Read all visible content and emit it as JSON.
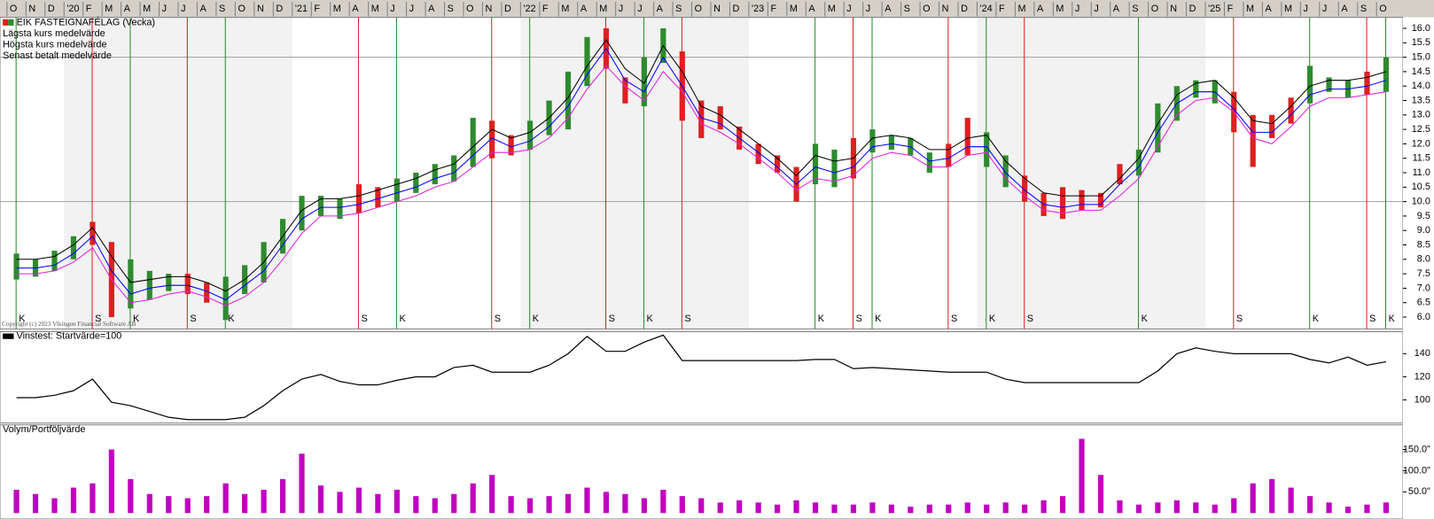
{
  "chart_data": [
    {
      "type": "price",
      "title": "EIK FASTEIGNAFÉLAG (Vecka)",
      "copyright": "Copyright (c) 2023 Vikingen Financial Software AB",
      "categories": [
        "O",
        "N",
        "D",
        "'20",
        "F",
        "M",
        "A",
        "M",
        "J",
        "J",
        "A",
        "S",
        "O",
        "N",
        "D",
        "'21",
        "F",
        "M",
        "A",
        "M",
        "J",
        "J",
        "A",
        "S",
        "O",
        "N",
        "D",
        "'22",
        "F",
        "M",
        "A",
        "M",
        "J",
        "J",
        "A",
        "S",
        "O",
        "N",
        "D",
        "'23",
        "F",
        "M",
        "A",
        "M",
        "J",
        "J",
        "A",
        "S",
        "O",
        "N",
        "D",
        "'24",
        "F",
        "M",
        "A",
        "M",
        "J",
        "J",
        "A",
        "S",
        "O",
        "N",
        "D",
        "'25",
        "F",
        "M",
        "A",
        "M",
        "J",
        "J",
        "A",
        "S",
        "O"
      ],
      "low": [
        7.3,
        7.4,
        7.6,
        8.0,
        8.5,
        6.0,
        6.3,
        6.6,
        6.9,
        6.8,
        6.5,
        5.9,
        6.8,
        7.2,
        8.2,
        9.0,
        9.5,
        9.4,
        9.6,
        9.8,
        10.0,
        10.3,
        10.6,
        10.7,
        11.2,
        11.5,
        11.6,
        11.8,
        12.3,
        12.5,
        14.0,
        14.6,
        13.4,
        13.3,
        14.8,
        12.8,
        12.2,
        12.5,
        11.8,
        11.3,
        11.0,
        10.0,
        10.6,
        10.5,
        10.8,
        11.7,
        11.8,
        11.6,
        11.0,
        11.2,
        11.6,
        11.2,
        10.5,
        10.0,
        9.5,
        9.4,
        9.7,
        9.8,
        10.6,
        10.9,
        11.7,
        12.8,
        13.6,
        13.4,
        12.4,
        11.2,
        12.2,
        12.7,
        13.4,
        13.8,
        13.6,
        13.7,
        13.8
      ],
      "high": [
        8.2,
        8.0,
        8.3,
        8.8,
        9.3,
        8.6,
        8.0,
        7.6,
        7.5,
        7.5,
        7.2,
        7.4,
        7.8,
        8.6,
        9.4,
        10.2,
        10.2,
        10.1,
        10.6,
        10.5,
        10.8,
        11.0,
        11.3,
        11.6,
        12.9,
        12.8,
        12.3,
        12.8,
        13.5,
        14.5,
        15.7,
        16.0,
        14.3,
        15.0,
        16.0,
        15.2,
        13.5,
        13.3,
        12.6,
        12.0,
        11.6,
        11.2,
        12.0,
        11.8,
        12.2,
        12.5,
        12.3,
        12.2,
        11.7,
        12.0,
        12.9,
        12.4,
        11.6,
        10.9,
        10.3,
        10.5,
        10.4,
        10.3,
        11.3,
        11.8,
        13.4,
        14.0,
        14.2,
        14.2,
        13.8,
        13.0,
        13.0,
        13.6,
        14.7,
        14.3,
        14.2,
        14.5,
        15.0
      ],
      "signals": [
        "K",
        null,
        null,
        null,
        "S",
        null,
        "K",
        null,
        null,
        "S",
        null,
        "K",
        null,
        null,
        null,
        null,
        null,
        null,
        "S",
        null,
        "K",
        null,
        null,
        null,
        null,
        "S",
        null,
        "K",
        null,
        null,
        null,
        "S",
        null,
        "K",
        null,
        "S",
        null,
        null,
        null,
        null,
        null,
        null,
        "K",
        null,
        "S",
        "K",
        null,
        null,
        null,
        "S",
        null,
        "K",
        null,
        "S",
        null,
        null,
        null,
        null,
        null,
        "K",
        null,
        null,
        null,
        null,
        "S",
        null,
        null,
        null,
        "K",
        null,
        null,
        "S",
        "K"
      ],
      "signal_colors": {
        "K": "#2e8b2e",
        "S": "#dd2020"
      },
      "series": [
        {
          "name": "Lägsta kurs medelvärde",
          "color": "#e020e0",
          "values": [
            7.5,
            7.5,
            7.6,
            7.9,
            8.4,
            7.3,
            6.5,
            6.6,
            6.8,
            6.9,
            6.7,
            6.4,
            6.7,
            7.2,
            8.0,
            8.9,
            9.5,
            9.5,
            9.6,
            9.8,
            10.0,
            10.2,
            10.5,
            10.7,
            11.2,
            11.7,
            11.7,
            11.8,
            12.2,
            12.9,
            13.9,
            14.7,
            14.0,
            13.5,
            14.5,
            13.8,
            12.7,
            12.4,
            12.0,
            11.5,
            11.0,
            10.4,
            10.8,
            10.7,
            10.9,
            11.5,
            11.7,
            11.6,
            11.2,
            11.2,
            11.6,
            11.7,
            10.8,
            10.2,
            9.7,
            9.6,
            9.7,
            9.7,
            10.2,
            10.8,
            11.9,
            13.0,
            13.5,
            13.6,
            13.1,
            12.2,
            12.0,
            12.6,
            13.3,
            13.6,
            13.6,
            13.7,
            13.8
          ]
        },
        {
          "name": "Högsta kurs medelvärde",
          "color": "#000000",
          "values": [
            8.0,
            8.0,
            8.1,
            8.5,
            9.1,
            8.1,
            7.2,
            7.3,
            7.4,
            7.4,
            7.2,
            6.9,
            7.3,
            7.9,
            8.8,
            9.7,
            10.1,
            10.1,
            10.2,
            10.4,
            10.6,
            10.8,
            11.1,
            11.3,
            11.9,
            12.5,
            12.2,
            12.4,
            12.9,
            13.6,
            14.7,
            15.6,
            14.6,
            14.1,
            15.4,
            14.5,
            13.3,
            13.0,
            12.5,
            12.0,
            11.5,
            10.9,
            11.6,
            11.4,
            11.5,
            12.2,
            12.3,
            12.2,
            11.8,
            11.8,
            12.2,
            12.3,
            11.4,
            10.8,
            10.3,
            10.2,
            10.2,
            10.2,
            10.8,
            11.5,
            12.7,
            13.7,
            14.1,
            14.2,
            13.6,
            12.8,
            12.7,
            13.3,
            14.0,
            14.2,
            14.2,
            14.3,
            14.5
          ]
        },
        {
          "name": "Senast betalt medelvärde",
          "color": "#0000ff",
          "values": [
            7.7,
            7.7,
            7.8,
            8.2,
            8.8,
            7.6,
            6.8,
            7.0,
            7.1,
            7.1,
            6.9,
            6.6,
            7.1,
            7.6,
            8.5,
            9.4,
            9.8,
            9.8,
            9.9,
            10.1,
            10.3,
            10.5,
            10.8,
            11.0,
            11.6,
            12.2,
            11.9,
            12.1,
            12.6,
            13.3,
            14.4,
            15.3,
            14.2,
            13.8,
            15.0,
            14.0,
            12.9,
            12.7,
            12.2,
            11.7,
            11.2,
            10.6,
            11.2,
            11.0,
            11.2,
            11.9,
            12.0,
            11.9,
            11.4,
            11.5,
            11.9,
            11.9,
            11.0,
            10.4,
            9.9,
            9.8,
            9.9,
            9.9,
            10.6,
            11.2,
            12.4,
            13.4,
            13.8,
            13.8,
            13.2,
            12.4,
            12.4,
            13.0,
            13.7,
            13.9,
            13.9,
            14.0,
            14.2
          ]
        }
      ],
      "ylim": [
        5.59,
        16.38
      ],
      "yticks": [
        {
          "value": 6,
          "label": "6.0"
        },
        {
          "value": 6.5,
          "label": "6.5"
        },
        {
          "value": 7,
          "label": "7.0"
        },
        {
          "value": 7.5,
          "label": "7.5"
        },
        {
          "value": 8,
          "label": "8.0"
        },
        {
          "value": 8.5,
          "label": "8.5"
        },
        {
          "value": 9,
          "label": "9.0"
        },
        {
          "value": 9.5,
          "label": "9.5"
        },
        {
          "value": 10,
          "label": "10.0"
        },
        {
          "value": 10.5,
          "label": "10.5"
        },
        {
          "value": 11,
          "label": "11.0"
        },
        {
          "value": 11.5,
          "label": "11.5"
        },
        {
          "value": 12,
          "label": "12.0"
        },
        {
          "value": 12.5,
          "label": "12.5"
        },
        {
          "value": 13,
          "label": "13.0"
        },
        {
          "value": 13.5,
          "label": "13.5"
        },
        {
          "value": 14,
          "label": "14.0"
        },
        {
          "value": 14.5,
          "label": "14.5"
        },
        {
          "value": 15,
          "label": "15.0"
        },
        {
          "value": 15.5,
          "label": "15.5"
        },
        {
          "value": 16,
          "label": "16.0"
        }
      ],
      "reference_lines": [
        10,
        15
      ]
    },
    {
      "type": "line",
      "series": [
        {
          "name": "Vinstest: Startvärde=100",
          "color": "#000000",
          "values": [
            102,
            102,
            104,
            108,
            118,
            98,
            95,
            90,
            85,
            83,
            83,
            83,
            85,
            95,
            108,
            118,
            122,
            116,
            113,
            113,
            117,
            120,
            120,
            128,
            130,
            124,
            124,
            124,
            130,
            140,
            155,
            142,
            142,
            150,
            156,
            134,
            134,
            134,
            134,
            134,
            134,
            134,
            135,
            135,
            127,
            128,
            127,
            126,
            125,
            124,
            124,
            124,
            118,
            115,
            115,
            115,
            115,
            115,
            115,
            115,
            125,
            140,
            145,
            142,
            140,
            140,
            140,
            140,
            135,
            132,
            137,
            130,
            133
          ]
        }
      ],
      "ylim": [
        80,
        159
      ],
      "yticks": [
        100,
        120,
        140
      ]
    },
    {
      "type": "bar",
      "title": "Volym/Portföljvärde",
      "color": "#c000c0",
      "values": [
        55,
        45,
        35,
        60,
        70,
        150,
        80,
        45,
        40,
        35,
        40,
        70,
        45,
        55,
        80,
        140,
        65,
        50,
        60,
        45,
        55,
        40,
        35,
        45,
        70,
        90,
        40,
        35,
        40,
        45,
        60,
        50,
        45,
        35,
        55,
        40,
        35,
        25,
        30,
        25,
        20,
        30,
        25,
        20,
        20,
        25,
        20,
        15,
        20,
        20,
        25,
        20,
        25,
        20,
        30,
        40,
        175,
        90,
        30,
        20,
        25,
        30,
        25,
        20,
        35,
        70,
        80,
        60,
        40,
        25,
        15,
        20,
        25
      ],
      "ylim": [
        -14,
        208
      ],
      "yticks": [
        {
          "value": 50,
          "label": "50.0\""
        },
        {
          "value": 100,
          "label": "100.0\""
        },
        {
          "value": 150,
          "label": "150.0\""
        }
      ]
    }
  ]
}
